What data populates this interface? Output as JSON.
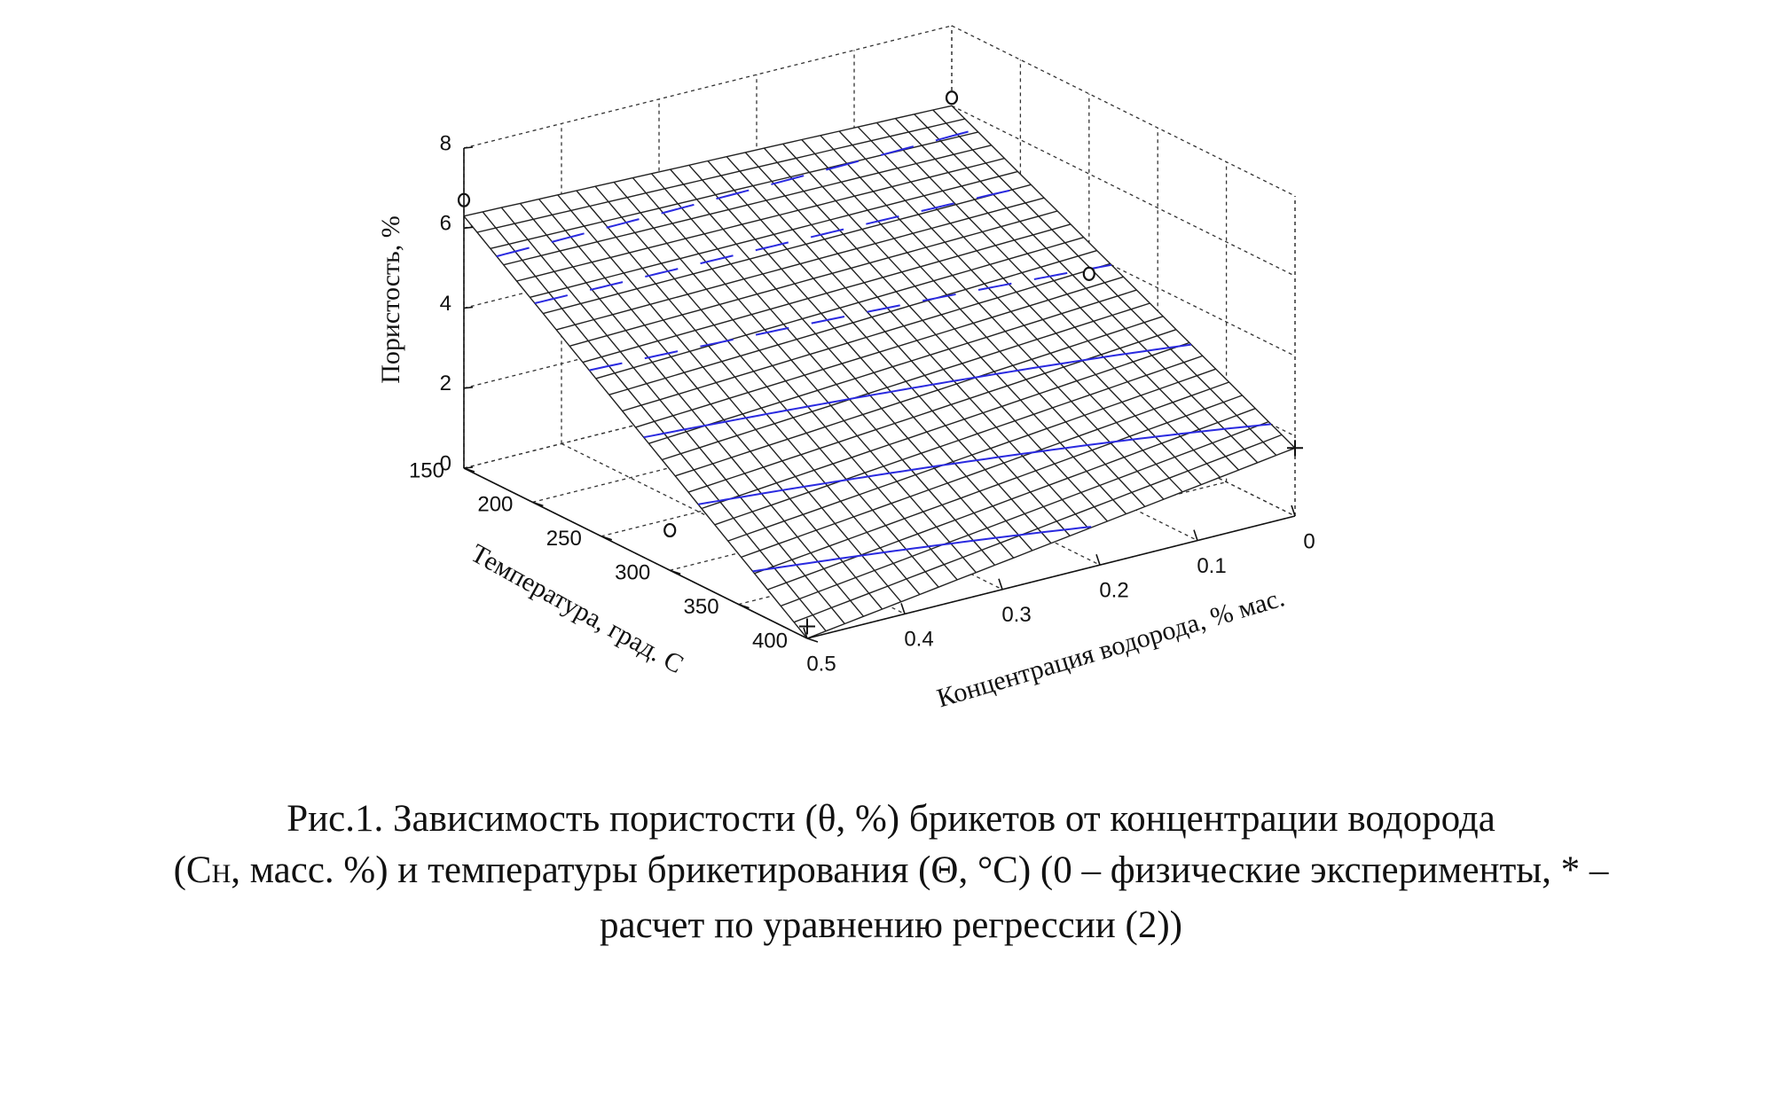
{
  "caption": {
    "line1": "Рис.1. Зависимость пористости (θ, %) брикетов от концентрации водорода",
    "line2_prefix": "(C",
    "line2_sub": "H",
    "line2_rest": ", масс. %) и температуры брикетирования (Θ, °С) (0  – физические эксперименты, * –",
    "line3": "расчет по уравнению регрессии (2))"
  },
  "chart_data": {
    "type": "surface",
    "title": "",
    "xlabel": "Концентрация водорода, % мас.",
    "ylabel": "Температура, град. С",
    "zlabel": "Пористость, %",
    "x_ticks": [
      "0",
      "0.1",
      "0.2",
      "0.3",
      "0.4",
      "0.5"
    ],
    "y_ticks": [
      "150",
      "200",
      "250",
      "300",
      "350",
      "400"
    ],
    "z_ticks": [
      "0",
      "2",
      "4",
      "6",
      "8"
    ],
    "xlim": [
      0,
      0.5
    ],
    "ylim": [
      150,
      400
    ],
    "zlim": [
      0,
      8
    ],
    "grid": true,
    "surface_corners": [
      {
        "x": 0.5,
        "y": 150,
        "z": 6.3
      },
      {
        "x": 0,
        "y": 150,
        "z": 6.0
      },
      {
        "x": 0,
        "y": 400,
        "z": 1.7
      },
      {
        "x": 0.5,
        "y": 400,
        "z": 0.0
      }
    ],
    "experimental_points": [
      {
        "marker": "o",
        "x": 0.5,
        "y": 150,
        "z": 6.7
      },
      {
        "marker": "o",
        "x": 0,
        "y": 150,
        "z": 6.2
      },
      {
        "marker": "o",
        "x": 0,
        "y": 250,
        "z": 3.5
      },
      {
        "marker": "o",
        "x": 0.5,
        "y": 300,
        "z": 1.0
      }
    ],
    "regression_points": [
      {
        "marker": "*",
        "x": 0,
        "y": 400,
        "z": 1.7
      },
      {
        "marker": "*",
        "x": 0.5,
        "y": 400,
        "z": 0.3
      }
    ],
    "contour_color": "#2a2ae0",
    "mesh_color": "#222222"
  }
}
